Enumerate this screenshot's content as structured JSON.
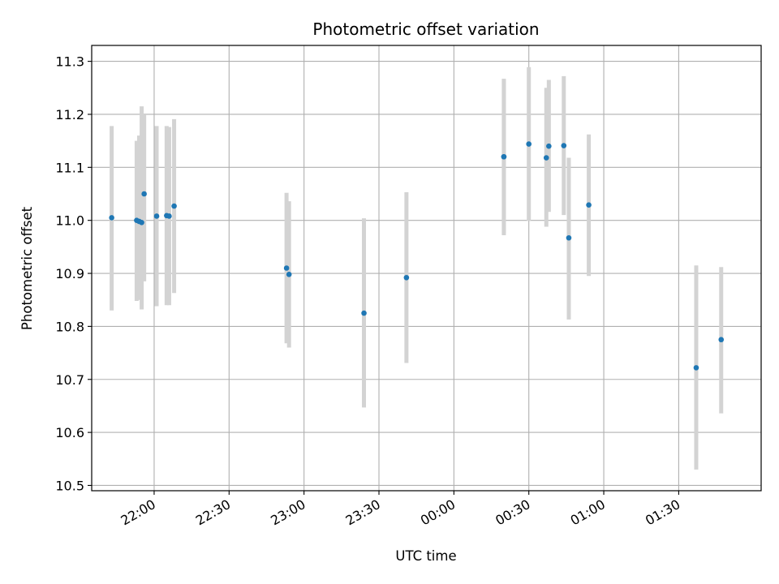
{
  "chart_data": {
    "type": "scatter",
    "title": "Photometric offset variation",
    "xlabel": "UTC time",
    "ylabel": "Photometric offset",
    "x_axis_kind": "time",
    "xlim": [
      "21:35",
      "02:03"
    ],
    "ylim": [
      10.49,
      11.33
    ],
    "yticks": [
      10.5,
      10.6,
      10.7,
      10.8,
      10.9,
      11.0,
      11.1,
      11.2,
      11.3
    ],
    "xticks": [
      "22:00",
      "22:30",
      "23:00",
      "23:30",
      "00:00",
      "00:30",
      "01:00",
      "01:30"
    ],
    "grid": true,
    "point_color": "#1f77b4",
    "errorbar_color": "#d3d3d3",
    "points": [
      {
        "x": "21:43",
        "y": 11.005,
        "err_low": 10.83,
        "err_high": 11.178
      },
      {
        "x": "21:53",
        "y": 11.0,
        "err_low": 10.848,
        "err_high": 11.15
      },
      {
        "x": "21:54",
        "y": 10.998,
        "err_low": 10.85,
        "err_high": 11.16
      },
      {
        "x": "21:55",
        "y": 10.996,
        "err_low": 10.832,
        "err_high": 11.215
      },
      {
        "x": "21:56",
        "y": 11.05,
        "err_low": 10.885,
        "err_high": 11.2
      },
      {
        "x": "22:01",
        "y": 11.008,
        "err_low": 10.838,
        "err_high": 11.178
      },
      {
        "x": "22:05",
        "y": 11.009,
        "err_low": 10.84,
        "err_high": 11.178
      },
      {
        "x": "22:06",
        "y": 11.008,
        "err_low": 10.84,
        "err_high": 11.176
      },
      {
        "x": "22:08",
        "y": 11.027,
        "err_low": 10.863,
        "err_high": 11.191
      },
      {
        "x": "22:53",
        "y": 10.91,
        "err_low": 10.768,
        "err_high": 11.052
      },
      {
        "x": "22:54",
        "y": 10.898,
        "err_low": 10.76,
        "err_high": 11.036
      },
      {
        "x": "23:24",
        "y": 10.825,
        "err_low": 10.647,
        "err_high": 11.004
      },
      {
        "x": "23:41",
        "y": 10.892,
        "err_low": 10.731,
        "err_high": 11.053
      },
      {
        "x": "00:20",
        "y": 11.12,
        "err_low": 10.972,
        "err_high": 11.267
      },
      {
        "x": "00:20",
        "y": 11.12,
        "err_low": 10.975,
        "err_high": 11.266
      },
      {
        "x": "00:30",
        "y": 11.144,
        "err_low": 10.999,
        "err_high": 11.289
      },
      {
        "x": "00:37",
        "y": 11.118,
        "err_low": 10.988,
        "err_high": 11.25
      },
      {
        "x": "00:38",
        "y": 11.14,
        "err_low": 11.016,
        "err_high": 11.265
      },
      {
        "x": "00:44",
        "y": 11.141,
        "err_low": 11.01,
        "err_high": 11.272
      },
      {
        "x": "00:46",
        "y": 10.967,
        "err_low": 10.813,
        "err_high": 11.118
      },
      {
        "x": "00:54",
        "y": 11.029,
        "err_low": 10.895,
        "err_high": 11.162
      },
      {
        "x": "01:37",
        "y": 10.722,
        "err_low": 10.53,
        "err_high": 10.915
      },
      {
        "x": "01:47",
        "y": 10.775,
        "err_low": 10.636,
        "err_high": 10.912
      }
    ]
  }
}
